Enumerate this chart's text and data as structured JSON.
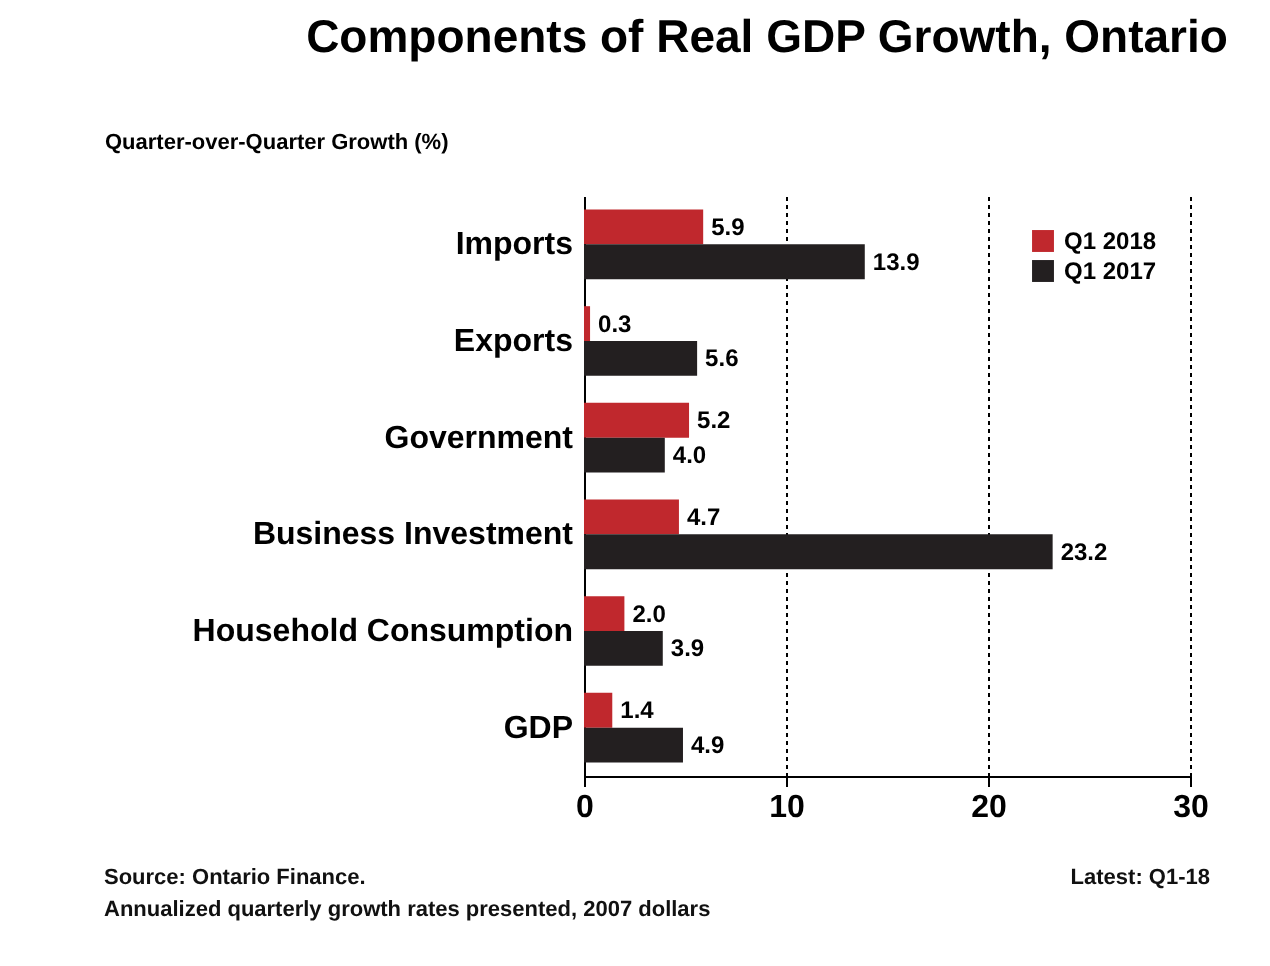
{
  "chart_data": {
    "type": "bar",
    "orientation": "horizontal",
    "title": "Components of Real GDP Growth, Ontario",
    "ylabel": "Quarter-over-Quarter Growth (%)",
    "categories": [
      "Imports",
      "Exports",
      "Government",
      "Business Investment",
      "Household Consumption",
      "GDP"
    ],
    "series": [
      {
        "name": "Q1 2018",
        "color": "#c0282d",
        "values": [
          5.9,
          0.3,
          5.2,
          4.7,
          2.0,
          1.4
        ],
        "value_labels": [
          "5.9",
          "0.3",
          "5.2",
          "4.7",
          "2.0",
          "1.4"
        ]
      },
      {
        "name": "Q1 2017",
        "color": "#231f20",
        "values": [
          13.9,
          5.6,
          4.0,
          23.2,
          3.9,
          4.9
        ],
        "value_labels": [
          "13.9",
          "5.6",
          "4.0",
          "23.2",
          "3.9",
          "4.9"
        ]
      }
    ],
    "xlim": [
      0,
      30
    ],
    "xticks": [
      0,
      10,
      20,
      30
    ],
    "grid": "x",
    "legend": "top right",
    "annotations": [
      "Source: Ontario Finance.",
      "Latest: Q1-18",
      "Annualized quarterly growth rates presented, 2007 dollars"
    ]
  }
}
